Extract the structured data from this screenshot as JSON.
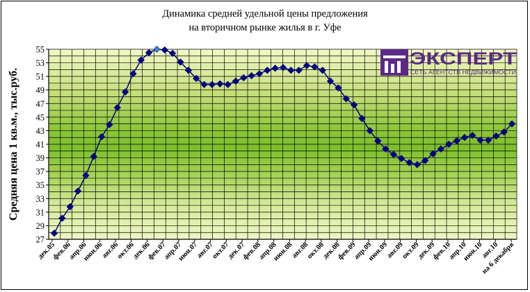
{
  "chart_data": {
    "type": "line",
    "title_lines": [
      "Динамика средней удельной цены предложения",
      "на вторичном рынке жилья в г. Уфе"
    ],
    "ylabel": "Средняя цена 1 кв.м., тыс.руб.",
    "xlabel": "",
    "ylim": [
      27,
      55
    ],
    "yticks": [
      27,
      29,
      31,
      33,
      35,
      37,
      39,
      41,
      43,
      45,
      47,
      49,
      51,
      53,
      55
    ],
    "grid": true,
    "legend": "none",
    "x_tick_labels": [
      "дек.05",
      "фев.06",
      "апр.06",
      "июн.06",
      "авг.06",
      "окт.06",
      "дек.06",
      "фев.07",
      "апр.07",
      "июн.07",
      "авг.07",
      "окт.07",
      "дек.07",
      "фев.08",
      "апр.08",
      "июн.08",
      "авг.08",
      "окт.08",
      "дек.08",
      "фев.09",
      "апр.09",
      "июн.09",
      "авг.09",
      "окт.09",
      "дек.09",
      "фев.10",
      "апр.10",
      "июн.10",
      "авг.10",
      "на 6 декабря"
    ],
    "series": [
      {
        "values": [
          27.9,
          30.1,
          31.8,
          34.1,
          36.4,
          39.2,
          42.1,
          43.9,
          46.4,
          48.7,
          51.4,
          53.4,
          54.5,
          55.0,
          54.9,
          54.4,
          53.1,
          51.9,
          50.7,
          49.8,
          49.8,
          49.9,
          49.8,
          50.3,
          50.8,
          51.1,
          51.4,
          51.9,
          52.2,
          52.3,
          51.9,
          51.9,
          52.6,
          52.4,
          51.9,
          50.3,
          49.3,
          47.7,
          46.8,
          44.8,
          43.0,
          41.5,
          40.3,
          39.5,
          38.9,
          38.3,
          38.0,
          38.6,
          39.6,
          40.3,
          41.0,
          41.5,
          42.0,
          42.3,
          41.6,
          41.6,
          42.2,
          42.8,
          44.0
        ],
        "color": "#000080",
        "highlight_index": 13,
        "highlight_color": "#4a7fd0"
      }
    ]
  },
  "logo": {
    "name": "ЭКСПЕРТ",
    "tagline": "СЕТЬ АГЕНТСТВ НЕДВИЖИМОСТИ",
    "color": "#5b2a86"
  }
}
